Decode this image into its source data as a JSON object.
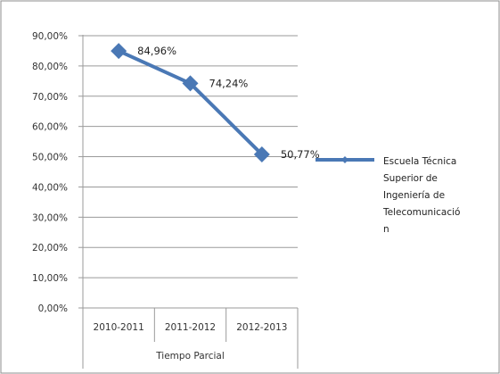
{
  "chart_data": {
    "type": "line",
    "title": "",
    "xlabel": "",
    "ylabel": "",
    "category_group_label": "Tiempo Parcial",
    "categories": [
      "2010-2011",
      "2011-2012",
      "2012-2013"
    ],
    "series": [
      {
        "name": "Escuela Técnica Superior de Ingeniería de Telecomunicación",
        "legend_lines": [
          "Escuela Técnica",
          "Superior de",
          "Ingeniería de",
          "Telecomunicació",
          "n"
        ],
        "values": [
          84.96,
          74.24,
          50.77
        ],
        "data_labels": [
          "84,96%",
          "74,24%",
          "50,77%"
        ],
        "color": "#4a78b5"
      }
    ],
    "ylim": [
      0,
      90
    ],
    "yticks": [
      0,
      10,
      20,
      30,
      40,
      50,
      60,
      70,
      80,
      90
    ],
    "ytick_labels": [
      "0,00%",
      "10,00%",
      "20,00%",
      "30,00%",
      "40,00%",
      "50,00%",
      "60,00%",
      "70,00%",
      "80,00%",
      "90,00%"
    ],
    "grid": true,
    "legend_position": "right"
  }
}
